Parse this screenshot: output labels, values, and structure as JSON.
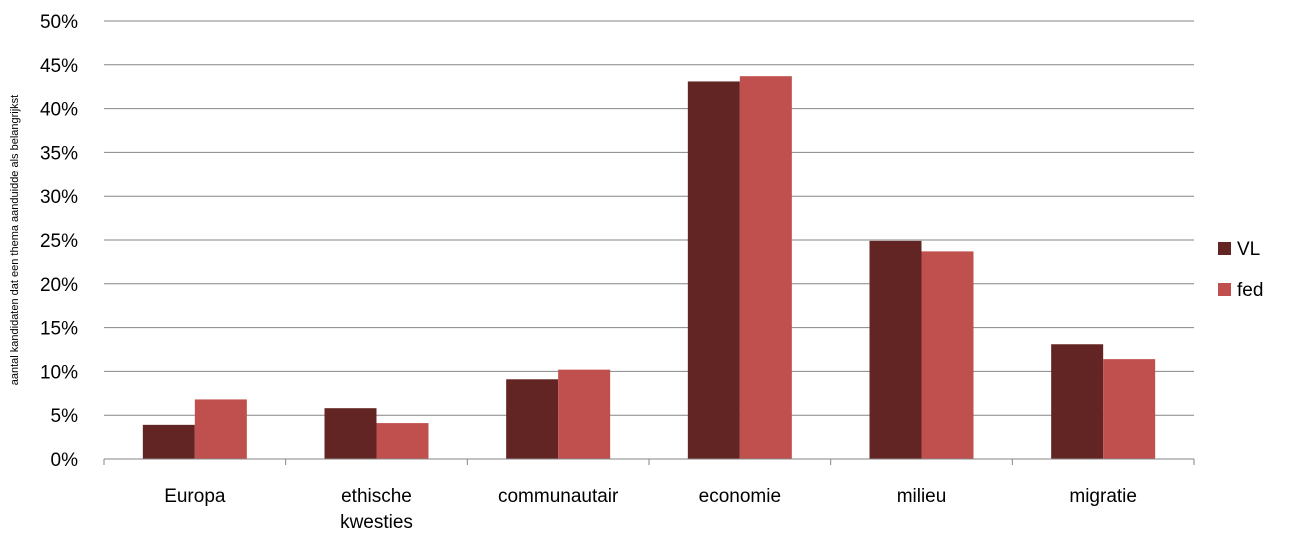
{
  "chart_data": {
    "type": "bar",
    "title": "",
    "xlabel": "",
    "ylabel": "aantal kandidaten dat een thema aanduidde als belangrijkst",
    "categories": [
      [
        "Europa"
      ],
      [
        "ethische",
        "kwesties"
      ],
      [
        "communautair"
      ],
      [
        "economie"
      ],
      [
        "milieu"
      ],
      [
        "migratie"
      ]
    ],
    "series": [
      {
        "name": "VL",
        "color": "#632523",
        "values": [
          3.9,
          5.8,
          9.1,
          43.1,
          24.9,
          13.1
        ]
      },
      {
        "name": "fed",
        "color": "#c0504d",
        "values": [
          6.8,
          4.1,
          10.2,
          43.7,
          23.7,
          11.4
        ]
      }
    ],
    "ylim": [
      0,
      50
    ],
    "yticks": [
      "0%",
      "5%",
      "10%",
      "15%",
      "20%",
      "25%",
      "30%",
      "35%",
      "40%",
      "45%",
      "50%"
    ],
    "grid": true,
    "legend_position": "right"
  }
}
